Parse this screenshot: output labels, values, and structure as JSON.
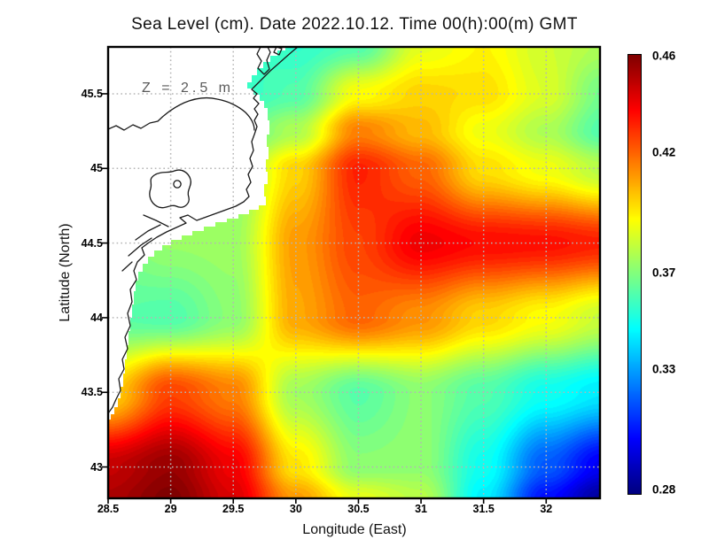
{
  "figure": {
    "title": "Sea Level (cm). Date 2022.10.12. Time 00(h):00(m) GMT",
    "annotation": "Z = 2.5 m",
    "background": "#ffffff",
    "grid_color": "#b5b5b5",
    "land_color": "#ffffff",
    "coast_color": "#1a1a1a"
  },
  "axes": {
    "x_label": "Longitude (East)",
    "y_label": "Latitude (North)",
    "x_ticks": [
      {
        "label": "28.5",
        "value": 28.5
      },
      {
        "label": "29",
        "value": 29
      },
      {
        "label": "29.5",
        "value": 29.5
      },
      {
        "label": "30",
        "value": 30
      },
      {
        "label": "30.5",
        "value": 30.5
      },
      {
        "label": "31",
        "value": 31
      },
      {
        "label": "31.5",
        "value": 31.5
      },
      {
        "label": "32",
        "value": 32
      }
    ],
    "y_ticks": [
      {
        "label": "45.5",
        "value": 45.5
      },
      {
        "label": "45",
        "value": 45
      },
      {
        "label": "44.5",
        "value": 44.5
      },
      {
        "label": "44",
        "value": 44
      },
      {
        "label": "43.5",
        "value": 43.5
      },
      {
        "label": "43",
        "value": 43
      }
    ]
  },
  "colorbar": {
    "colormap": "jet",
    "min": 0.28,
    "max": 0.46,
    "ticks": [
      {
        "label": "0.46",
        "value": 0.46
      },
      {
        "label": "0.42",
        "value": 0.42
      },
      {
        "label": "0.37",
        "value": 0.37
      },
      {
        "label": "0.33",
        "value": 0.33
      },
      {
        "label": "0.28",
        "value": 0.28
      }
    ]
  },
  "chart_data": {
    "type": "heatmap",
    "title": "Sea Level (cm). Date 2022.10.12. Time 00(h):00(m) GMT",
    "xlabel": "Longitude (East)",
    "ylabel": "Latitude (North)",
    "xlim": [
      28.5,
      32.43
    ],
    "ylim": [
      42.79,
      45.814
    ],
    "grid": "dotted",
    "legend_position": "right-colorbar",
    "colormap": "jet",
    "colorbar_range": [
      0.28,
      0.46
    ],
    "annotation": "Z = 2.5 m",
    "x": [
      28.5,
      29.0,
      29.5,
      30.0,
      30.5,
      31.0,
      31.5,
      32.0,
      32.45
    ],
    "y": [
      45.82,
      45.5,
      45.25,
      45.0,
      44.5,
      44.0,
      43.5,
      43.0,
      42.79
    ],
    "values": [
      [
        0.37,
        0.368,
        0.36,
        0.356,
        0.362,
        0.388,
        0.394,
        0.384,
        0.378
      ],
      [
        0.37,
        0.366,
        0.356,
        0.362,
        0.392,
        0.4,
        0.398,
        0.386,
        0.368
      ],
      [
        0.372,
        0.37,
        0.362,
        0.378,
        0.415,
        0.405,
        0.39,
        0.378,
        0.362
      ],
      [
        0.374,
        0.372,
        0.372,
        0.4,
        0.432,
        0.42,
        0.398,
        0.39,
        0.38
      ],
      [
        0.368,
        0.374,
        0.375,
        0.41,
        0.426,
        0.44,
        0.436,
        0.435,
        0.432
      ],
      [
        0.364,
        0.362,
        0.372,
        0.408,
        0.42,
        0.412,
        0.4,
        0.392,
        0.383
      ],
      [
        0.4,
        0.426,
        0.415,
        0.376,
        0.363,
        0.372,
        0.362,
        0.35,
        0.344
      ],
      [
        0.448,
        0.456,
        0.44,
        0.397,
        0.372,
        0.373,
        0.35,
        0.318,
        0.3
      ],
      [
        0.452,
        0.46,
        0.444,
        0.41,
        0.388,
        0.38,
        0.345,
        0.305,
        0.285
      ]
    ]
  }
}
